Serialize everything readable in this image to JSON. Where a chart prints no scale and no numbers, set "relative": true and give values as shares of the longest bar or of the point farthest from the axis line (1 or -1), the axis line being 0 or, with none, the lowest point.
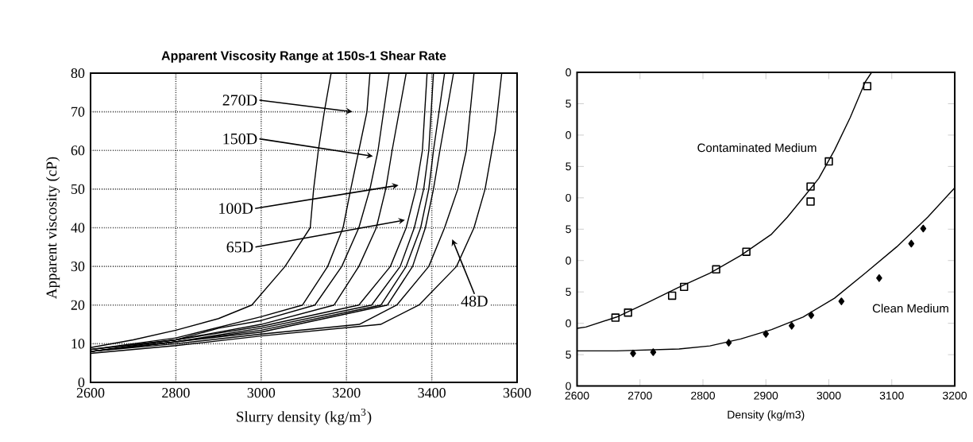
{
  "chart_data": [
    {
      "type": "line",
      "title": "Apparent Viscosity Range at 150s-1 Shear Rate",
      "xlabel": "Slurry density (kg/m$^{3}$)",
      "ylabel": "Apparent viscosity (cP)",
      "xlim": [
        2600,
        3600
      ],
      "ylim": [
        0,
        80
      ],
      "xticks": [
        2600,
        2800,
        3000,
        3200,
        3400,
        3600
      ],
      "yticks": [
        0,
        10,
        20,
        30,
        40,
        50,
        60,
        70,
        80
      ],
      "grid": true,
      "marker": "none",
      "line_style": "solid",
      "series": [
        {
          "color": "#000000",
          "x": [
            2600,
            2700,
            2800,
            2900,
            2978,
            3056,
            3115,
            3123,
            3134,
            3148,
            3164
          ],
          "values": [
            9,
            11,
            13.5,
            16.5,
            20,
            30,
            40,
            50,
            60,
            70,
            80
          ]
        },
        {
          "color": "#000000",
          "x": [
            2600,
            2800,
            3000,
            3097,
            3156,
            3192,
            3210,
            3229,
            3248,
            3255
          ],
          "values": [
            8.5,
            11.5,
            17,
            20,
            30,
            40,
            50,
            60,
            70,
            80
          ]
        },
        {
          "color": "#000000",
          "x": [
            2600,
            2800,
            2900,
            3000,
            3126,
            3189,
            3229,
            3255,
            3274,
            3300
          ],
          "values": [
            8.5,
            11,
            14,
            16,
            20,
            30,
            40,
            50,
            60,
            80
          ]
        },
        {
          "color": "#000000",
          "x": [
            2600,
            2800,
            3000,
            3171,
            3229,
            3270,
            3292,
            3307,
            3340
          ],
          "values": [
            8.5,
            11,
            15,
            20,
            30,
            40,
            50,
            60,
            80
          ]
        },
        {
          "color": "#000000",
          "x": [
            2600,
            2800,
            3000,
            3229,
            3303,
            3340,
            3363,
            3378,
            3389
          ],
          "values": [
            8,
            11,
            14.5,
            20,
            30,
            40,
            50,
            60,
            80
          ]
        },
        {
          "color": "#000000",
          "x": [
            2600,
            2800,
            3000,
            3259,
            3326,
            3359,
            3381,
            3393,
            3404
          ],
          "values": [
            8,
            10.5,
            14,
            20,
            30,
            40,
            50,
            60,
            80
          ]
        },
        {
          "color": "#000000",
          "x": [
            2600,
            2800,
            3000,
            3281,
            3340,
            3374,
            3393,
            3404,
            3430
          ],
          "values": [
            8,
            10.5,
            13.5,
            20,
            30,
            40,
            50,
            60,
            80
          ]
        },
        {
          "color": "#000000",
          "x": [
            2600,
            2800,
            3000,
            3296,
            3355,
            3385,
            3404,
            3419,
            3451
          ],
          "values": [
            8,
            10.5,
            13,
            20,
            30,
            40,
            50,
            60,
            80
          ]
        },
        {
          "color": "#000000",
          "x": [
            2600,
            2800,
            3000,
            3230,
            3318,
            3393,
            3430,
            3461,
            3481,
            3499
          ],
          "values": [
            8,
            10,
            12.5,
            15,
            20,
            30,
            40,
            50,
            60,
            80
          ]
        },
        {
          "color": "#000000",
          "x": [
            2600,
            2800,
            3000,
            3280,
            3370,
            3458,
            3499,
            3525,
            3549,
            3564
          ],
          "values": [
            7.5,
            9.5,
            12,
            15,
            20,
            30,
            40,
            50,
            65,
            80
          ]
        }
      ],
      "annotations": [
        "270D",
        "150D",
        "100D",
        "65D",
        "48D"
      ]
    },
    {
      "type": "scatter",
      "xlabel": "Density (kg/m3)",
      "xlim": [
        2600,
        3200
      ],
      "xticks": [
        2600,
        2700,
        2800,
        2900,
        3000,
        3100,
        3200
      ],
      "relative": true,
      "annotations": [
        "0",
        "5",
        "0",
        "5",
        "0",
        "5",
        "0",
        "5",
        "0",
        "5",
        "0"
      ],
      "series": [
        {
          "type": "line",
          "name": "Contaminated Medium",
          "color": "#000000",
          "marker": "none",
          "x": [
            2600,
            2614,
            2663,
            2712,
            2761,
            2811,
            2860,
            2909,
            2934,
            2960,
            2984,
            3009,
            3034,
            3058,
            3068
          ],
          "values": [
            0.184,
            0.188,
            0.22,
            0.266,
            0.314,
            0.36,
            0.416,
            0.484,
            0.538,
            0.602,
            0.662,
            0.752,
            0.856,
            0.97,
            1
          ]
        },
        {
          "color": "#000000",
          "marker": "square",
          "x": [
            2661,
            2681,
            2751,
            2770,
            2821,
            2869,
            2971,
            2971,
            3000,
            3061
          ],
          "values": [
            0.218,
            0.234,
            0.288,
            0.316,
            0.372,
            0.428,
            0.636,
            0.588,
            0.716,
            0.956
          ]
        },
        {
          "type": "line",
          "name": "Clean Medium",
          "color": "#000000",
          "marker": "none",
          "x": [
            2600,
            2663,
            2762,
            2811,
            2860,
            2909,
            2959,
            3009,
            3058,
            3108,
            3157,
            3200
          ],
          "values": [
            0.112,
            0.112,
            0.118,
            0.128,
            0.15,
            0.18,
            0.22,
            0.28,
            0.36,
            0.444,
            0.538,
            0.632
          ]
        },
        {
          "color": "#000000",
          "marker": "diamond",
          "x": [
            2689,
            2721,
            2841,
            2900,
            2941,
            2972,
            3020,
            3080,
            3131,
            3150
          ],
          "values": [
            0.104,
            0.108,
            0.138,
            0.166,
            0.192,
            0.226,
            0.27,
            0.344,
            0.454,
            0.502
          ]
        }
      ]
    }
  ]
}
